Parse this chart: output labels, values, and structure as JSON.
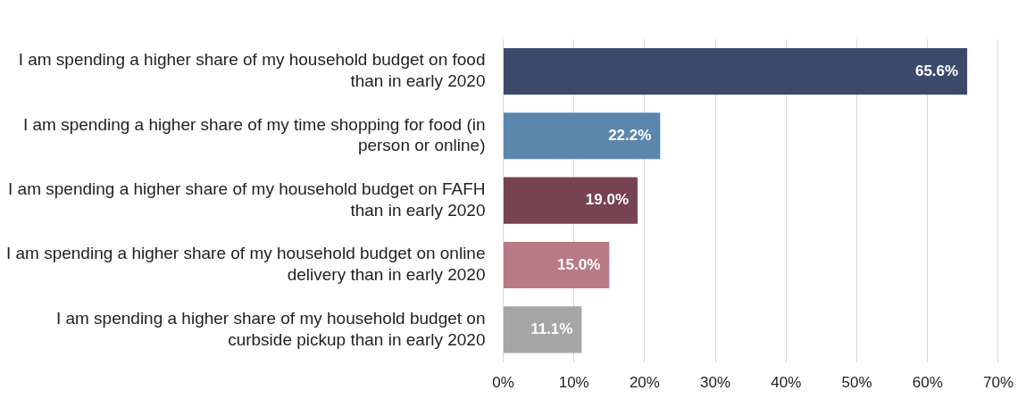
{
  "chart_data": {
    "type": "bar",
    "orientation": "horizontal",
    "categories": [
      "I am spending a higher share of my household budget on food than in early 2020",
      "I am spending a higher share of my time shopping for food (in person or online)",
      "I am spending a higher share of my household budget on FAFH than in early 2020",
      "I am spending a higher share of my household budget on online delivery than in early 2020",
      "I am spending a higher share of my household budget on curbside pickup than in early 2020"
    ],
    "values": [
      65.6,
      22.2,
      19.0,
      15.0,
      11.1
    ],
    "colors": [
      "#3b4a6b",
      "#5b87ad",
      "#76434f",
      "#b87a84",
      "#a5a5a5"
    ],
    "value_labels": [
      "65.6%",
      "22.2%",
      "19.0%",
      "15.0%",
      "11.1%"
    ],
    "xlim": [
      0,
      70
    ],
    "xticks": [
      {
        "value": 0,
        "label": "0%"
      },
      {
        "value": 10,
        "label": "10%"
      },
      {
        "value": 20,
        "label": "20%"
      },
      {
        "value": 30,
        "label": "30%"
      },
      {
        "value": 40,
        "label": "40%"
      },
      {
        "value": 50,
        "label": "50%"
      },
      {
        "value": 60,
        "label": "60%"
      },
      {
        "value": 70,
        "label": "70%"
      }
    ],
    "grid": "x",
    "legend": false
  }
}
